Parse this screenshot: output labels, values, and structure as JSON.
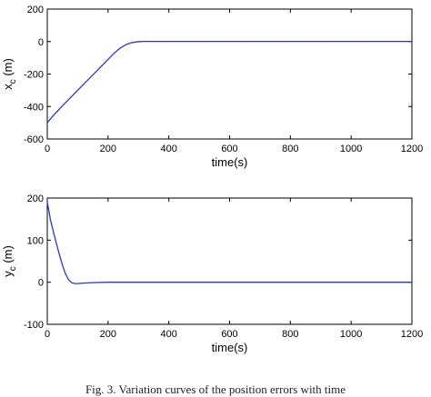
{
  "chart_data": [
    {
      "type": "line",
      "title": "",
      "xlabel": "time(s)",
      "ylabel": "x_c (m)",
      "ylabel_main": "x",
      "ylabel_sub": "c",
      "ylabel_unit": " (m)",
      "xlim": [
        0,
        1200
      ],
      "ylim": [
        -600,
        200
      ],
      "xticks": [
        0,
        200,
        400,
        600,
        800,
        1000,
        1200
      ],
      "yticks": [
        -600,
        -400,
        -200,
        0,
        200
      ],
      "grid": false,
      "line_color": "#2b35c8",
      "series": [
        {
          "x": [
            0,
            20,
            50,
            100,
            150,
            200,
            220,
            240,
            260,
            280,
            300,
            320,
            350,
            400,
            600,
            800,
            1000,
            1200
          ],
          "y": [
            -500,
            -455,
            -395,
            -300,
            -205,
            -110,
            -72,
            -40,
            -18,
            -6,
            0,
            1,
            1,
            1,
            1,
            1,
            1,
            1
          ]
        }
      ]
    },
    {
      "type": "line",
      "title": "",
      "xlabel": "time(s)",
      "ylabel": "y_c (m)",
      "ylabel_main": "y",
      "ylabel_sub": "c",
      "ylabel_unit": " (m)",
      "xlim": [
        0,
        1200
      ],
      "ylim": [
        -100,
        200
      ],
      "xticks": [
        0,
        200,
        400,
        600,
        800,
        1000,
        1200
      ],
      "yticks": [
        -100,
        0,
        100,
        200
      ],
      "grid": false,
      "line_color": "#2b35c8",
      "series": [
        {
          "x": [
            0,
            5,
            10,
            20,
            30,
            40,
            50,
            60,
            70,
            80,
            90,
            100,
            120,
            150,
            200,
            400,
            600,
            800,
            1000,
            1200
          ],
          "y": [
            190,
            170,
            150,
            120,
            92,
            65,
            40,
            20,
            6,
            -1,
            -3,
            -3,
            -2,
            -1,
            0,
            0,
            0,
            0,
            0,
            0
          ]
        }
      ]
    }
  ],
  "caption": "Fig. 3.  Variation curves of the position errors with time"
}
